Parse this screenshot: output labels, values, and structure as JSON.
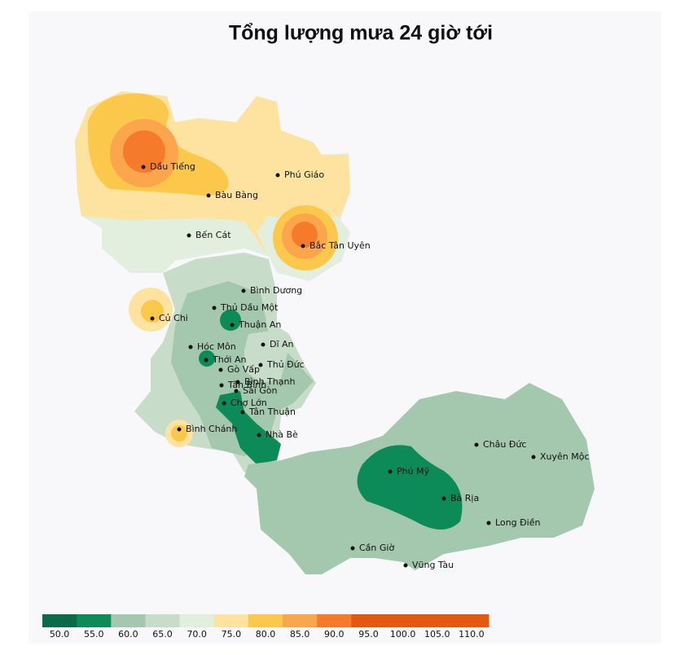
{
  "title": "Tổng lượng mưa 24 giờ tới",
  "places": [
    "Dầu Tiếng",
    "Bàu Bàng",
    "Phú Giáo",
    "Bến Cát",
    "Bắc Tân Uyên",
    "Bình Dương",
    "Thủ Dầu Một",
    "Củ Chi",
    "Thuận An",
    "Dĩ An",
    "Hóc Môn",
    "Thới An",
    "Thủ Đức",
    "Gò Vấp",
    "Bình Thạnh",
    "Tân Bình",
    "Sài Gòn",
    "Chợ Lớn",
    "Tân Thuận",
    "Bình Chánh",
    "Nhà Bè",
    "Châu Đức",
    "Xuyên Mộc",
    "Phú Mỹ",
    "Bà Rịa",
    "Long Điền",
    "Cần Giờ",
    "Vũng Tàu"
  ],
  "legend": {
    "colors": [
      "#0b6b49",
      "#0c8a57",
      "#a3c8ae",
      "#c8dcca",
      "#e2efdf",
      "#fde39f",
      "#fcc84b",
      "#fba64c",
      "#f57b2b",
      "#e15a10",
      "#e15a10",
      "#e15a10",
      "#e15a10"
    ],
    "ticks": [
      {
        "value": 50,
        "label": "50.0"
      },
      {
        "value": 55,
        "label": "55.0"
      },
      {
        "value": 60,
        "label": "60.0"
      },
      {
        "value": 65,
        "label": "65.0"
      },
      {
        "value": 70,
        "label": "70.0"
      },
      {
        "value": 75,
        "label": "75.0"
      },
      {
        "value": 80,
        "label": "80.0"
      },
      {
        "value": 85,
        "label": "85.0"
      },
      {
        "value": 90,
        "label": "90.0"
      },
      {
        "value": 95,
        "label": "95.0"
      },
      {
        "value": 100,
        "label": "100.0"
      },
      {
        "value": 105,
        "label": "105.0"
      },
      {
        "value": 110,
        "label": "110.0"
      }
    ]
  }
}
